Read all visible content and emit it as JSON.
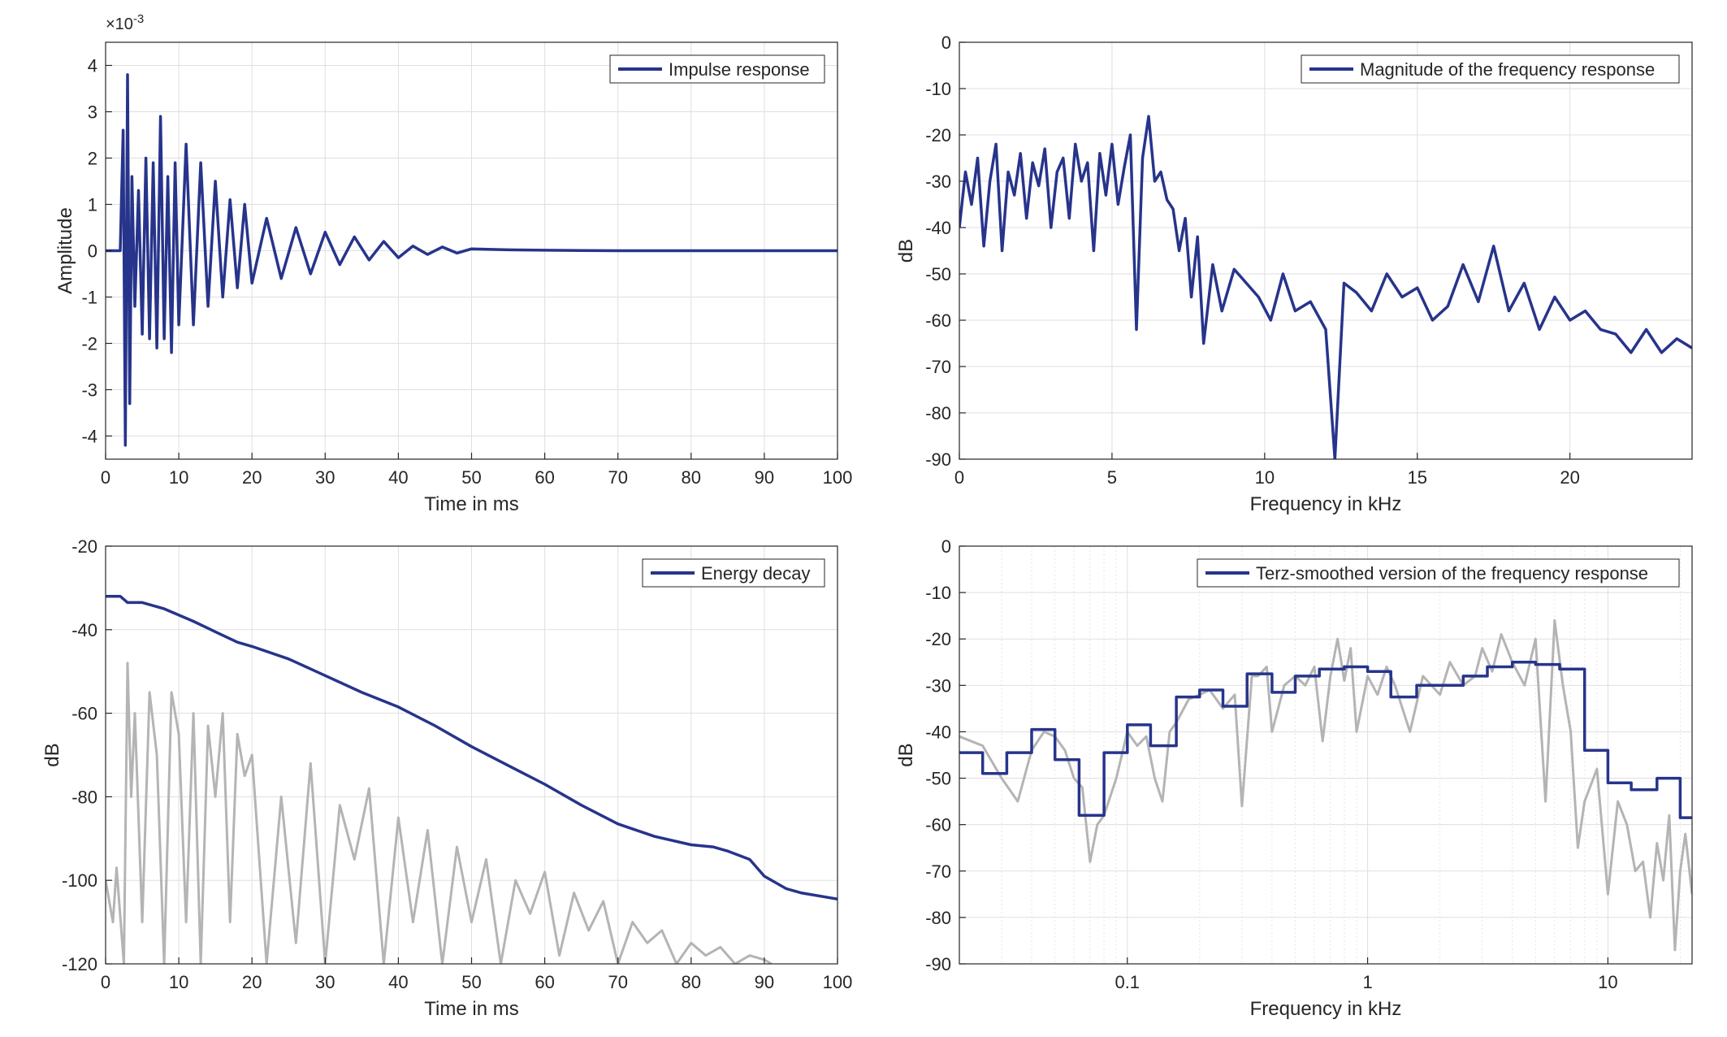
{
  "colors": {
    "series": "#27348b",
    "raw": "#b4b4b4",
    "grid": "#dfdfdf",
    "axis": "#262626"
  },
  "chart_data": [
    {
      "type": "line",
      "xlabel": "Time in ms",
      "ylabel": "Amplitude",
      "xlim": [
        0,
        100
      ],
      "ylim": [
        -4.5,
        4.5
      ],
      "exponent_label": "×10-3",
      "x_ticks": [
        0,
        10,
        20,
        30,
        40,
        50,
        60,
        70,
        80,
        90,
        100
      ],
      "y_ticks": [
        -4,
        -3,
        -2,
        -1,
        0,
        1,
        2,
        3,
        4
      ],
      "grid": true,
      "legend_position": "top-right",
      "series": [
        {
          "name": "Impulse response",
          "style": "line",
          "x": [
            0,
            1,
            2,
            2.4,
            2.7,
            3.0,
            3.3,
            3.6,
            4,
            4.5,
            5,
            5.5,
            6,
            6.5,
            7,
            7.5,
            8,
            8.5,
            9,
            9.5,
            10,
            11,
            12,
            13,
            14,
            15,
            16,
            17,
            18,
            19,
            20,
            22,
            24,
            26,
            28,
            30,
            32,
            34,
            36,
            38,
            40,
            42,
            44,
            46,
            48,
            50,
            55,
            60,
            65,
            70,
            80,
            90,
            100
          ],
          "y": [
            0,
            0,
            0,
            2.6,
            -4.2,
            3.8,
            -3.3,
            1.6,
            -1.2,
            1.3,
            -1.8,
            2.0,
            -1.9,
            1.9,
            -2.1,
            2.9,
            -1.9,
            1.6,
            -2.2,
            1.9,
            -1.6,
            2.3,
            -1.6,
            1.9,
            -1.2,
            1.5,
            -1.0,
            1.1,
            -0.8,
            1.0,
            -0.7,
            0.7,
            -0.6,
            0.5,
            -0.5,
            0.4,
            -0.3,
            0.3,
            -0.2,
            0.2,
            -0.15,
            0.1,
            -0.08,
            0.08,
            -0.05,
            0.04,
            0.02,
            0.01,
            0.005,
            0,
            0,
            0,
            0
          ]
        }
      ]
    },
    {
      "type": "line",
      "xlabel": "Frequency in kHz",
      "ylabel": "dB",
      "xlim": [
        0,
        24
      ],
      "ylim": [
        -90,
        0
      ],
      "x_ticks": [
        0,
        5,
        10,
        15,
        20
      ],
      "y_ticks": [
        0,
        -10,
        -20,
        -30,
        -40,
        -50,
        -60,
        -70,
        -80,
        -90
      ],
      "grid": true,
      "legend_position": "top-right",
      "series": [
        {
          "name": "Magnitude of the frequency response",
          "style": "line",
          "x": [
            0,
            0.2,
            0.4,
            0.6,
            0.8,
            1,
            1.2,
            1.4,
            1.6,
            1.8,
            2,
            2.2,
            2.4,
            2.6,
            2.8,
            3,
            3.2,
            3.4,
            3.6,
            3.8,
            4,
            4.2,
            4.4,
            4.6,
            4.8,
            5,
            5.2,
            5.4,
            5.6,
            5.8,
            6,
            6.2,
            6.4,
            6.6,
            6.8,
            7,
            7.2,
            7.4,
            7.6,
            7.8,
            8,
            8.3,
            8.6,
            9,
            9.4,
            9.8,
            10.2,
            10.6,
            11,
            11.5,
            12,
            12.3,
            12.6,
            13,
            13.5,
            14,
            14.5,
            15,
            15.5,
            16,
            16.5,
            17,
            17.5,
            18,
            18.5,
            19,
            19.5,
            20,
            20.5,
            21,
            21.5,
            22,
            22.5,
            23,
            23.5,
            24
          ],
          "y": [
            -40,
            -28,
            -35,
            -25,
            -44,
            -30,
            -22,
            -45,
            -28,
            -33,
            -24,
            -38,
            -26,
            -31,
            -23,
            -40,
            -28,
            -25,
            -38,
            -22,
            -30,
            -26,
            -45,
            -24,
            -33,
            -22,
            -35,
            -27,
            -20,
            -62,
            -25,
            -16,
            -30,
            -28,
            -34,
            -36,
            -45,
            -38,
            -55,
            -42,
            -65,
            -48,
            -58,
            -49,
            -52,
            -55,
            -60,
            -50,
            -58,
            -56,
            -62,
            -90,
            -52,
            -54,
            -58,
            -50,
            -55,
            -53,
            -60,
            -57,
            -48,
            -56,
            -44,
            -58,
            -52,
            -62,
            -55,
            -60,
            -58,
            -62,
            -63,
            -67,
            -62,
            -67,
            -64,
            -66
          ]
        }
      ]
    },
    {
      "type": "line",
      "xlabel": "Time in ms",
      "ylabel": "dB",
      "xlim": [
        0,
        100
      ],
      "ylim": [
        -120,
        -20
      ],
      "x_ticks": [
        0,
        10,
        20,
        30,
        40,
        50,
        60,
        70,
        80,
        90,
        100
      ],
      "y_ticks": [
        -20,
        -40,
        -60,
        -80,
        -100,
        -120
      ],
      "grid": true,
      "legend_position": "top-right",
      "series": [
        {
          "name": "",
          "style": "raw",
          "x": [
            0,
            1,
            1.5,
            2.5,
            3,
            3.5,
            4,
            5,
            6,
            7,
            8,
            9,
            10,
            11,
            12,
            13,
            14,
            15,
            16,
            17,
            18,
            19,
            20,
            22,
            24,
            26,
            28,
            30,
            32,
            34,
            36,
            38,
            40,
            42,
            44,
            46,
            48,
            50,
            52,
            54,
            56,
            58,
            60,
            62,
            64,
            66,
            68,
            70,
            72,
            74,
            76,
            78,
            80,
            82,
            84,
            86,
            88,
            90,
            91
          ],
          "y": [
            -100,
            -110,
            -97,
            -120,
            -48,
            -80,
            -60,
            -110,
            -55,
            -70,
            -120,
            -55,
            -65,
            -110,
            -60,
            -120,
            -63,
            -80,
            -60,
            -110,
            -65,
            -75,
            -70,
            -120,
            -80,
            -115,
            -72,
            -120,
            -82,
            -95,
            -78,
            -120,
            -85,
            -110,
            -88,
            -120,
            -92,
            -110,
            -95,
            -120,
            -100,
            -108,
            -98,
            -118,
            -103,
            -112,
            -105,
            -120,
            -110,
            -115,
            -112,
            -120,
            -115,
            -118,
            -116,
            -120,
            -118,
            -119,
            -120
          ]
        },
        {
          "name": "Energy decay",
          "style": "line",
          "x": [
            0,
            2,
            3,
            5,
            8,
            12,
            15,
            18,
            20,
            25,
            30,
            35,
            40,
            45,
            50,
            55,
            60,
            65,
            70,
            75,
            80,
            83,
            85,
            88,
            90,
            93,
            95,
            100
          ],
          "y": [
            -32,
            -32,
            -33.5,
            -33.5,
            -35,
            -38,
            -40.5,
            -43,
            -44,
            -47,
            -51,
            -55,
            -58.5,
            -63,
            -68,
            -72.5,
            -77,
            -82,
            -86.5,
            -89.5,
            -91.5,
            -92,
            -93,
            -95,
            -99,
            -102,
            -103,
            -104.5
          ]
        }
      ]
    },
    {
      "type": "line",
      "xlabel": "Frequency in kHz",
      "ylabel": "dB",
      "x_scale": "log",
      "xlim": [
        0.02,
        22.4
      ],
      "ylim": [
        -90,
        0
      ],
      "x_ticks": [
        0.1,
        1,
        10
      ],
      "x_tick_labels": [
        "0.1",
        "1",
        "10"
      ],
      "y_ticks": [
        0,
        -10,
        -20,
        -30,
        -40,
        -50,
        -60,
        -70,
        -80,
        -90
      ],
      "grid": true,
      "legend_position": "top-right",
      "series": [
        {
          "name": "",
          "style": "raw",
          "x": [
            0.02,
            0.025,
            0.03,
            0.035,
            0.04,
            0.045,
            0.05,
            0.055,
            0.06,
            0.065,
            0.07,
            0.075,
            0.08,
            0.09,
            0.1,
            0.11,
            0.12,
            0.13,
            0.14,
            0.15,
            0.16,
            0.18,
            0.2,
            0.22,
            0.25,
            0.28,
            0.3,
            0.33,
            0.35,
            0.38,
            0.4,
            0.45,
            0.5,
            0.55,
            0.6,
            0.65,
            0.7,
            0.75,
            0.8,
            0.85,
            0.9,
            1,
            1.1,
            1.2,
            1.3,
            1.5,
            1.7,
            2,
            2.2,
            2.5,
            2.8,
            3,
            3.3,
            3.6,
            4,
            4.5,
            5,
            5.5,
            6,
            6.5,
            7,
            7.5,
            8,
            9,
            10,
            11,
            12,
            13,
            14,
            15,
            16,
            17,
            18,
            19,
            20,
            21,
            22.4
          ],
          "y": [
            -41,
            -43,
            -50,
            -55,
            -44,
            -40,
            -41,
            -44,
            -50,
            -52,
            -68,
            -60,
            -58,
            -50,
            -40,
            -43,
            -41,
            -50,
            -55,
            -40,
            -38,
            -33,
            -32,
            -31,
            -35,
            -32,
            -56,
            -28,
            -28,
            -26,
            -40,
            -30,
            -28,
            -30,
            -26,
            -42,
            -28,
            -20,
            -29,
            -22,
            -40,
            -28,
            -32,
            -26,
            -30,
            -40,
            -28,
            -32,
            -25,
            -30,
            -28,
            -22,
            -27,
            -19,
            -25,
            -30,
            -20,
            -55,
            -16,
            -30,
            -40,
            -65,
            -55,
            -48,
            -75,
            -55,
            -60,
            -70,
            -68,
            -80,
            -64,
            -72,
            -58,
            -87,
            -70,
            -62,
            -75
          ]
        },
        {
          "name": "Terz-smoothed version of the frequency response",
          "style": "step",
          "x": [
            0.02,
            0.025,
            0.0315,
            0.04,
            0.05,
            0.063,
            0.08,
            0.1,
            0.125,
            0.16,
            0.2,
            0.25,
            0.315,
            0.4,
            0.5,
            0.63,
            0.8,
            1.0,
            1.25,
            1.6,
            2.0,
            2.5,
            3.15,
            4.0,
            5.0,
            6.3,
            8.0,
            10.0,
            12.5,
            16.0,
            20.0
          ],
          "y": [
            -44.5,
            -49,
            -44.5,
            -39.5,
            -46,
            -58,
            -44.5,
            -38.5,
            -43,
            -32.5,
            -31,
            -34.5,
            -27.5,
            -31.5,
            -28,
            -26.5,
            -26,
            -27,
            -32.5,
            -30,
            -30,
            -28,
            -26,
            -25,
            -25.5,
            -26.5,
            -44,
            -51,
            -52.5,
            -50,
            -58.5
          ]
        }
      ]
    }
  ]
}
